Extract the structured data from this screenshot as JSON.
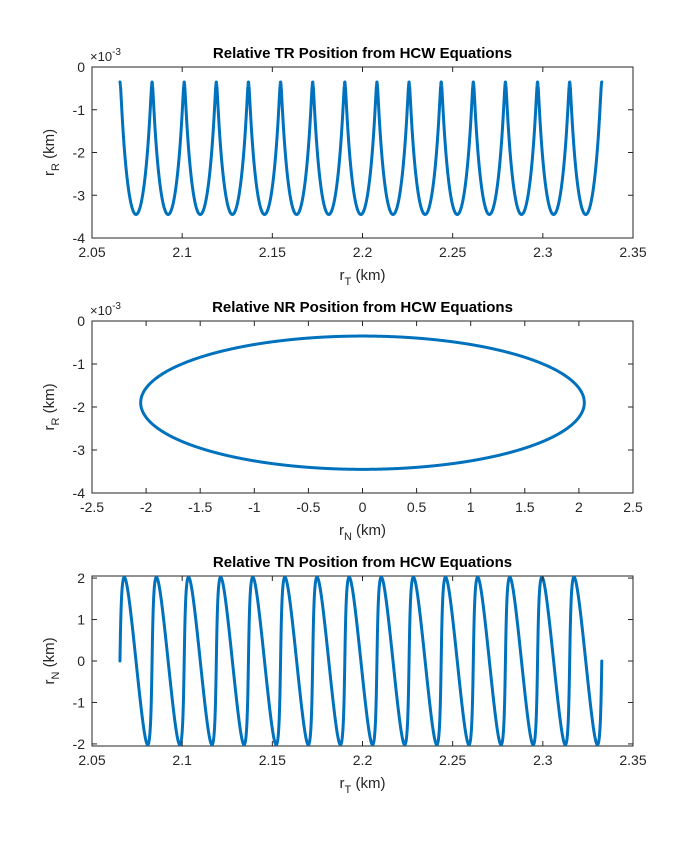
{
  "figure": {
    "background": "#ffffff",
    "line_color": "#0072BD"
  },
  "chart_data": [
    {
      "type": "line",
      "title": "Relative TR Position from HCW Equations",
      "xlabel": {
        "main": "r",
        "sub": "T",
        "unit": "(km)"
      },
      "ylabel": {
        "main": "r",
        "sub": "R",
        "unit": "(km)"
      },
      "y_exponent": {
        "base": "×10",
        "power": "-3"
      },
      "xlim": [
        2.05,
        2.35
      ],
      "ylim": [
        -4,
        0
      ],
      "x_ticks": [
        "2.05",
        "2.1",
        "2.15",
        "2.2",
        "2.25",
        "2.3",
        "2.35"
      ],
      "y_ticks": [
        "0",
        "-1",
        "-2",
        "-3",
        "-4"
      ],
      "grid": false,
      "legend": "none",
      "series": [
        {
          "color": "#0072BD",
          "model": "cycloid",
          "x_start": 2.0655,
          "x_end": 2.3327,
          "y_top": -0.00035,
          "y_bottom": -0.00345,
          "orbits": 15
        }
      ]
    },
    {
      "type": "line",
      "title": "Relative NR Position from HCW Equations",
      "xlabel": {
        "main": "r",
        "sub": "N",
        "unit": "(km)"
      },
      "ylabel": {
        "main": "r",
        "sub": "R",
        "unit": "(km)"
      },
      "y_exponent": {
        "base": "×10",
        "power": "-3"
      },
      "xlim": [
        -2.5,
        2.5
      ],
      "ylim": [
        -4,
        0
      ],
      "x_ticks": [
        "-2.5",
        "-2",
        "-1.5",
        "-1",
        "-0.5",
        "0",
        "0.5",
        "1",
        "1.5",
        "2",
        "2.5"
      ],
      "y_ticks": [
        "0",
        "-1",
        "-2",
        "-3",
        "-4"
      ],
      "grid": false,
      "legend": "none",
      "series": [
        {
          "color": "#0072BD",
          "model": "ellipse",
          "x_center": 0,
          "x_amplitude": 2.05,
          "y_center": -0.0019,
          "y_amplitude": 0.00155
        }
      ]
    },
    {
      "type": "line",
      "title": "Relative TN Position from HCW Equations",
      "xlabel": {
        "main": "r",
        "sub": "T",
        "unit": "(km)"
      },
      "ylabel": {
        "main": "r",
        "sub": "N",
        "unit": "(km)"
      },
      "y_exponent": null,
      "xlim": [
        2.05,
        2.35
      ],
      "ylim": [
        -2.05,
        2.05
      ],
      "x_ticks": [
        "2.05",
        "2.1",
        "2.15",
        "2.2",
        "2.25",
        "2.3",
        "2.35"
      ],
      "y_ticks": [
        "2",
        "1",
        "0",
        "-1",
        "-2"
      ],
      "grid": false,
      "legend": "none",
      "series": [
        {
          "color": "#0072BD",
          "model": "cycloid-sine",
          "x_start": 2.0655,
          "x_end": 2.3327,
          "y_amplitude": 2.02,
          "orbits": 15
        }
      ]
    }
  ]
}
